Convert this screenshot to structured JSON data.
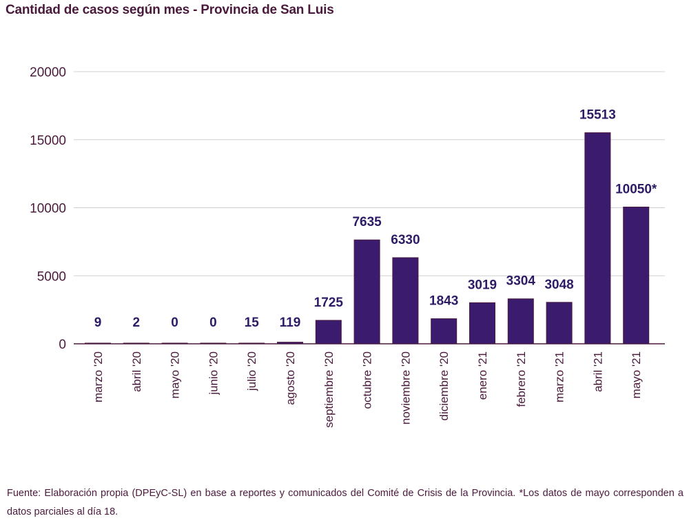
{
  "title": "Cantidad de casos según mes -  Provincia de San Luis",
  "source_note": "Fuente: Elaboración propia (DPEyC-SL) en base a reportes y comunicados del Comité de Crisis de la Provincia. *Los datos de mayo corresponden a datos parciales al día 18.",
  "colors": {
    "bar": "#3a1b6e",
    "bar_outline": "#4a1a3c",
    "value_label": "#2e1b66",
    "tick_label": "#4a1a3c",
    "grid": "#d0d0d0",
    "title": "#4a1a3c"
  },
  "chart_data": {
    "type": "bar",
    "categories": [
      "marzo '20",
      "abril '20",
      "mayo '20",
      "junio '20",
      "julio '20",
      "agosto '20",
      "septiembre '20",
      "octubre '20",
      "noviembre '20",
      "diciembre '20",
      "enero '21",
      "febrero '21",
      "marzo '21",
      "abril '21",
      "mayo '21"
    ],
    "values": [
      9,
      2,
      0,
      0,
      15,
      119,
      1725,
      7635,
      6330,
      1843,
      3019,
      3304,
      3048,
      15513,
      10050
    ],
    "data_labels": [
      "9",
      "2",
      "0",
      "0",
      "15",
      "119",
      "1725",
      "7635",
      "6330",
      "1843",
      "3019",
      "3304",
      "3048",
      "15513",
      "10050*"
    ],
    "yticks": [
      "0",
      "5000",
      "10000",
      "15000",
      "20000"
    ],
    "ylim": [
      0,
      20000
    ],
    "grid": true,
    "legend": "none",
    "xlabel": "",
    "ylabel": ""
  }
}
